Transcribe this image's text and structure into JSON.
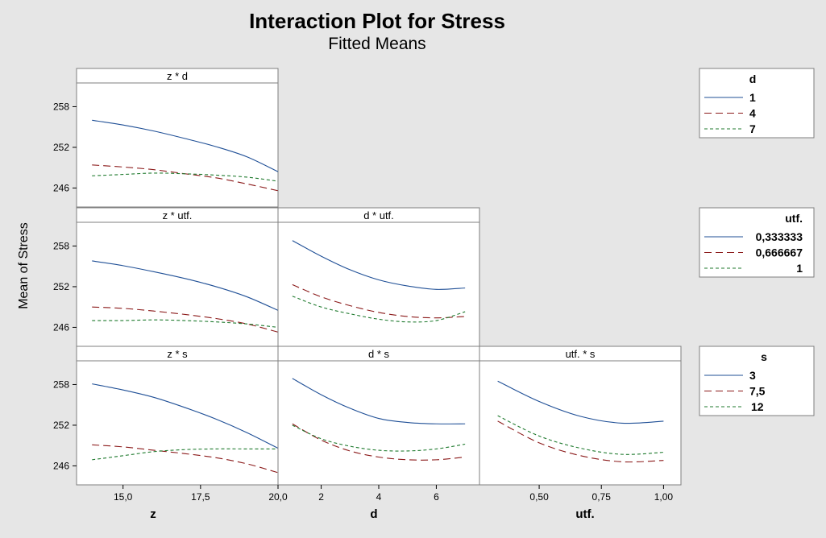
{
  "title": "Interaction Plot for Stress",
  "subtitle": "Fitted Means",
  "ylabel": "Mean of Stress",
  "colors": {
    "blue": "#1f4f96",
    "red": "#8b1a1a",
    "green": "#1f7a2e",
    "frame": "#7f7f7f",
    "background": "#e6e6e6"
  },
  "chart_data": {
    "type": "line",
    "y_ticks": [
      "246",
      "252",
      "258"
    ],
    "ylim": [
      243.2,
      261.5
    ],
    "xaxes": [
      {
        "label": "z",
        "ticks": [
          "15,0",
          "17,5",
          "20,0"
        ],
        "tick_values": [
          15.0,
          17.5,
          20.0
        ],
        "xlim": [
          13.5,
          20.0
        ]
      },
      {
        "label": "d",
        "ticks": [
          "2",
          "4",
          "6"
        ],
        "tick_values": [
          2,
          4,
          6
        ],
        "xlim": [
          0.5,
          7.5
        ]
      },
      {
        "label": "utf.",
        "ticks": [
          "0,50",
          "0,75",
          "1,00"
        ],
        "tick_values": [
          0.5,
          0.75,
          1.0
        ],
        "xlim": [
          0.26,
          1.07
        ]
      }
    ],
    "legends": [
      {
        "title": "d",
        "entries": [
          "1",
          "4",
          "7"
        ]
      },
      {
        "title": "utf.",
        "entries": [
          "0,333333",
          "0,666667",
          "1"
        ]
      },
      {
        "title": "s",
        "entries": [
          "3",
          "7,5",
          "12"
        ]
      }
    ],
    "panels": [
      {
        "title": "z * d",
        "row": 0,
        "col": 0,
        "x": [
          14.0,
          15.0,
          16.0,
          17.0,
          18.0,
          19.0,
          20.0
        ],
        "series": [
          {
            "name": "1",
            "values": [
              256.0,
              255.3,
              254.4,
              253.3,
              252.1,
              250.6,
              248.4
            ]
          },
          {
            "name": "4",
            "values": [
              249.4,
              249.1,
              248.7,
              248.1,
              247.5,
              246.6,
              245.6
            ]
          },
          {
            "name": "7",
            "values": [
              247.8,
              248.0,
              248.2,
              248.1,
              247.9,
              247.6,
              247.0
            ]
          }
        ]
      },
      {
        "title": "z * utf.",
        "row": 1,
        "col": 0,
        "x": [
          14.0,
          15.0,
          16.0,
          17.0,
          18.0,
          19.0,
          20.0
        ],
        "series": [
          {
            "name": "0,333333",
            "values": [
              255.8,
              255.1,
              254.2,
              253.2,
              252.0,
              250.5,
              248.5
            ]
          },
          {
            "name": "0,666667",
            "values": [
              249.0,
              248.8,
              248.4,
              247.9,
              247.3,
              246.5,
              245.3
            ]
          },
          {
            "name": "1",
            "values": [
              247.0,
              247.0,
              247.1,
              247.0,
              246.8,
              246.5,
              246.0
            ]
          }
        ]
      },
      {
        "title": "d * utf.",
        "row": 1,
        "col": 1,
        "x": [
          1,
          2,
          3,
          4,
          5,
          6,
          7
        ],
        "series": [
          {
            "name": "0,333333",
            "values": [
              258.8,
              256.5,
              254.5,
              253.0,
              252.1,
              251.6,
              251.8
            ]
          },
          {
            "name": "0,666667",
            "values": [
              252.3,
              250.5,
              249.2,
              248.2,
              247.6,
              247.4,
              247.6
            ]
          },
          {
            "name": "1",
            "values": [
              250.6,
              249.0,
              248.0,
              247.2,
              246.8,
              247.0,
              248.3
            ]
          }
        ]
      },
      {
        "title": "z * s",
        "row": 2,
        "col": 0,
        "x": [
          14.0,
          15.0,
          16.0,
          17.0,
          18.0,
          19.0,
          20.0
        ],
        "series": [
          {
            "name": "3",
            "values": [
              258.1,
              257.2,
              256.1,
              254.6,
              252.9,
              250.9,
              248.6
            ]
          },
          {
            "name": "7,5",
            "values": [
              249.1,
              248.8,
              248.3,
              247.8,
              247.2,
              246.3,
              245.0
            ]
          },
          {
            "name": "12",
            "values": [
              246.9,
              247.5,
              248.1,
              248.4,
              248.5,
              248.5,
              248.5
            ]
          }
        ]
      },
      {
        "title": "d * s",
        "row": 2,
        "col": 1,
        "x": [
          1,
          2,
          3,
          4,
          5,
          6,
          7
        ],
        "series": [
          {
            "name": "3",
            "values": [
              258.9,
              256.5,
              254.5,
              253.0,
              252.4,
              252.2,
              252.2
            ]
          },
          {
            "name": "7,5",
            "values": [
              252.2,
              249.8,
              248.2,
              247.3,
              246.9,
              246.9,
              247.3
            ]
          },
          {
            "name": "12",
            "values": [
              252.0,
              250.0,
              248.9,
              248.3,
              248.2,
              248.5,
              249.2
            ]
          }
        ]
      },
      {
        "title": "utf. * s",
        "row": 2,
        "col": 2,
        "x": [
          0.333333,
          0.5,
          0.666667,
          0.833333,
          1.0
        ],
        "series": [
          {
            "name": "3",
            "values": [
              258.5,
              255.5,
              253.3,
              252.3,
              252.6
            ]
          },
          {
            "name": "7,5",
            "values": [
              252.6,
              249.4,
              247.5,
              246.6,
              246.8
            ]
          },
          {
            "name": "12",
            "values": [
              253.4,
              250.4,
              248.6,
              247.7,
              248.0
            ]
          }
        ]
      }
    ]
  }
}
